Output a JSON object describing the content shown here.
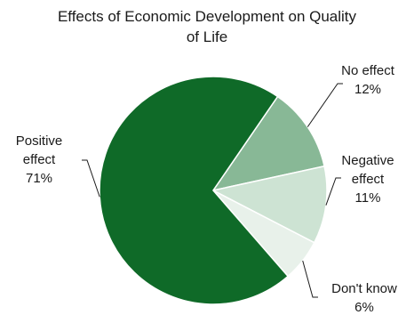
{
  "chart_data": {
    "type": "pie",
    "title": [
      "Effects of Economic Development on Quality",
      "of Life"
    ],
    "slices": [
      {
        "name": "No effect",
        "label_lines": [
          "No effect",
          "12%"
        ],
        "value": 12,
        "color": "#88b896"
      },
      {
        "name": "Negative effect",
        "label_lines": [
          "Negative",
          "effect",
          "11%"
        ],
        "value": 11,
        "color": "#cde3d3"
      },
      {
        "name": "Don't know",
        "label_lines": [
          "Don't know",
          "6%"
        ],
        "value": 6,
        "color": "#e8f1ea"
      },
      {
        "name": "Positive effect",
        "label_lines": [
          "Positive",
          "effect",
          "71%"
        ],
        "value": 71,
        "color": "#0f6a28"
      }
    ]
  }
}
